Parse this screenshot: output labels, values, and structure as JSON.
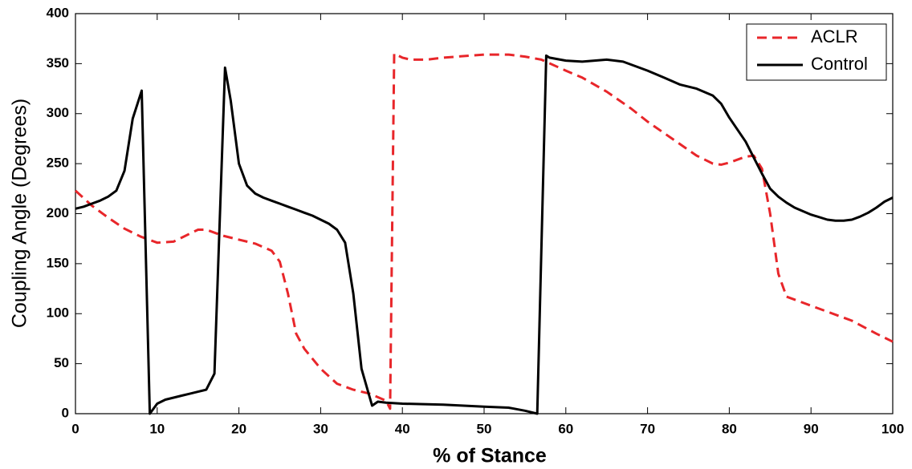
{
  "chart_data": {
    "type": "line",
    "xlabel": "% of Stance",
    "ylabel": "Coupling Angle (Degrees)",
    "xlim": [
      0,
      100
    ],
    "xticks": [
      0,
      10,
      20,
      30,
      40,
      50,
      60,
      70,
      80,
      90,
      100
    ],
    "ylim": [
      0,
      400
    ],
    "yticks": [
      0,
      50,
      100,
      150,
      200,
      250,
      300,
      350,
      400
    ],
    "grid": false,
    "legend": "upper right",
    "series": [
      {
        "name": "ACLR",
        "color": "#e8262a",
        "style": "dashed",
        "x": [
          0,
          2,
          4,
          6,
          8,
          10,
          12,
          14,
          15,
          16,
          18,
          20,
          22,
          24,
          25,
          26,
          27,
          28,
          30,
          32,
          34,
          36,
          38,
          38.5,
          39,
          40,
          41,
          43,
          45,
          50,
          53,
          55,
          57,
          60,
          62,
          65,
          68,
          70,
          73,
          76,
          78,
          79,
          80,
          82,
          83,
          84,
          85,
          86,
          87,
          90,
          95,
          98,
          100
        ],
        "values": [
          223,
          208,
          196,
          185,
          177,
          171,
          172,
          180,
          184,
          184,
          178,
          174,
          170,
          163,
          152,
          120,
          80,
          65,
          45,
          30,
          24,
          20,
          13,
          5,
          360,
          356,
          354,
          354,
          356,
          359,
          359,
          357,
          354,
          343,
          336,
          322,
          305,
          292,
          275,
          258,
          250,
          249,
          251,
          257,
          258,
          245,
          200,
          140,
          117,
          108,
          93,
          80,
          72
        ]
      },
      {
        "name": "Control",
        "color": "#000000",
        "style": "solid",
        "x": [
          0,
          1,
          2,
          3,
          4,
          5,
          6,
          7,
          8.1,
          9.1,
          10,
          11,
          12,
          13,
          14,
          15,
          16,
          17,
          18.3,
          19,
          20,
          21,
          22,
          23,
          24,
          25,
          26,
          27,
          28,
          29,
          30,
          31,
          32,
          33,
          34,
          35,
          36.3,
          37,
          38,
          40,
          45,
          50,
          53,
          55,
          56.5,
          57.6,
          58,
          60,
          62,
          65,
          67,
          70,
          72,
          74,
          76,
          78,
          79,
          80,
          82,
          83,
          84,
          85,
          86,
          87,
          88,
          90,
          92,
          93,
          94,
          95,
          96,
          97,
          98,
          99,
          100
        ],
        "values": [
          205,
          207,
          210,
          213,
          217,
          223,
          243,
          295,
          323,
          0,
          10,
          14,
          16,
          18,
          20,
          22,
          24,
          40,
          346,
          313,
          250,
          228,
          220,
          216,
          213,
          210,
          207,
          204,
          201,
          198,
          194,
          190,
          184,
          171,
          120,
          45,
          8,
          12,
          11,
          10,
          9,
          7,
          6,
          3,
          0,
          358,
          356,
          353,
          352,
          354,
          352,
          343,
          336,
          329,
          325,
          318,
          310,
          296,
          272,
          256,
          240,
          225,
          217,
          211,
          206,
          199,
          194,
          193,
          193,
          194,
          197,
          201,
          206,
          212,
          216
        ]
      }
    ]
  }
}
